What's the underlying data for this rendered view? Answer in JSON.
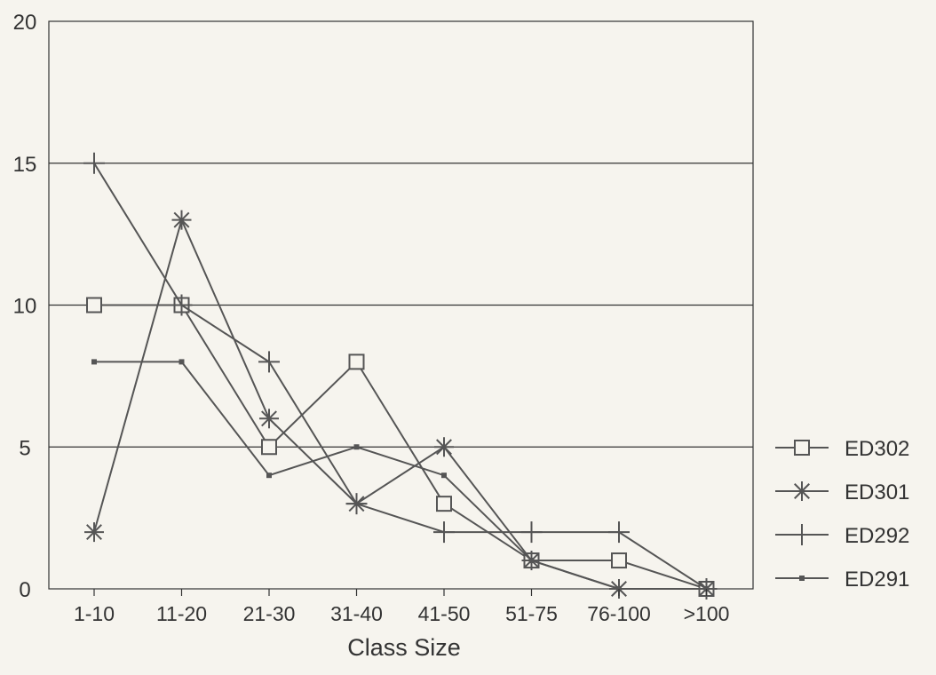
{
  "chart_data": {
    "type": "line",
    "title": "",
    "xlabel": "Class Size",
    "ylabel": "",
    "ylim": [
      0,
      20
    ],
    "yticks": [
      0,
      5,
      10,
      15,
      20
    ],
    "grid": "horizontal",
    "legend_position": "right",
    "categories": [
      "1-10",
      "11-20",
      "21-30",
      "31-40",
      "41-50",
      "51-75",
      "76-100",
      ">100"
    ],
    "series": [
      {
        "name": "ED302",
        "marker": "square",
        "values": [
          10,
          10,
          5,
          8,
          3,
          1,
          1,
          0
        ]
      },
      {
        "name": "ED301",
        "marker": "asterisk",
        "values": [
          2,
          13,
          6,
          3,
          5,
          1,
          0,
          0
        ]
      },
      {
        "name": "ED292",
        "marker": "plus",
        "values": [
          15,
          10,
          8,
          3,
          2,
          2,
          2,
          0
        ]
      },
      {
        "name": "ED291",
        "marker": "dot",
        "values": [
          8,
          8,
          4,
          5,
          4,
          1,
          0,
          0
        ]
      }
    ],
    "colors": {
      "line": "#555555",
      "grid": "#333333",
      "text": "#333333",
      "background": "#f6f4ee"
    }
  }
}
